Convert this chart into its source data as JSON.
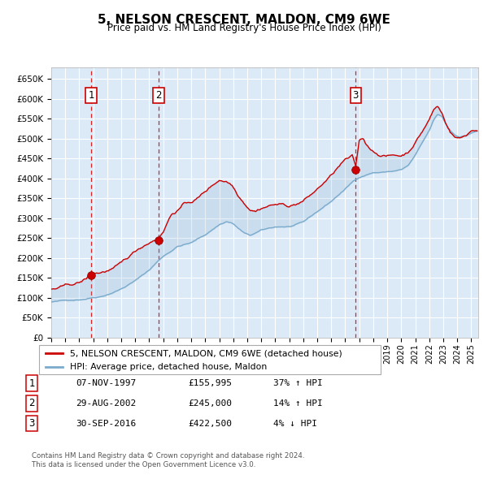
{
  "title": "5, NELSON CRESCENT, MALDON, CM9 6WE",
  "subtitle": "Price paid vs. HM Land Registry's House Price Index (HPI)",
  "ylim": [
    0,
    680000
  ],
  "xlim_start": 1995.0,
  "xlim_end": 2025.5,
  "bg_color": "#dce9f7",
  "grid_color": "#ffffff",
  "red_line_color": "#cc0000",
  "blue_line_color": "#7aabcc",
  "sale_marker_color": "#cc0000",
  "sale_dates": [
    1997.854,
    2002.662,
    2016.748
  ],
  "sale_prices": [
    155995,
    245000,
    422500
  ],
  "sale_labels": [
    "1",
    "2",
    "3"
  ],
  "sale_date_labels": [
    "07-NOV-1997",
    "29-AUG-2002",
    "30-SEP-2016"
  ],
  "sale_price_labels": [
    "£155,995",
    "£245,000",
    "£422,500"
  ],
  "sale_hpi_labels": [
    "37% ↑ HPI",
    "14% ↑ HPI",
    "4% ↓ HPI"
  ],
  "legend_red_label": "5, NELSON CRESCENT, MALDON, CM9 6WE (detached house)",
  "legend_blue_label": "HPI: Average price, detached house, Maldon",
  "footer_line1": "Contains HM Land Registry data © Crown copyright and database right 2024.",
  "footer_line2": "This data is licensed under the Open Government Licence v3.0."
}
